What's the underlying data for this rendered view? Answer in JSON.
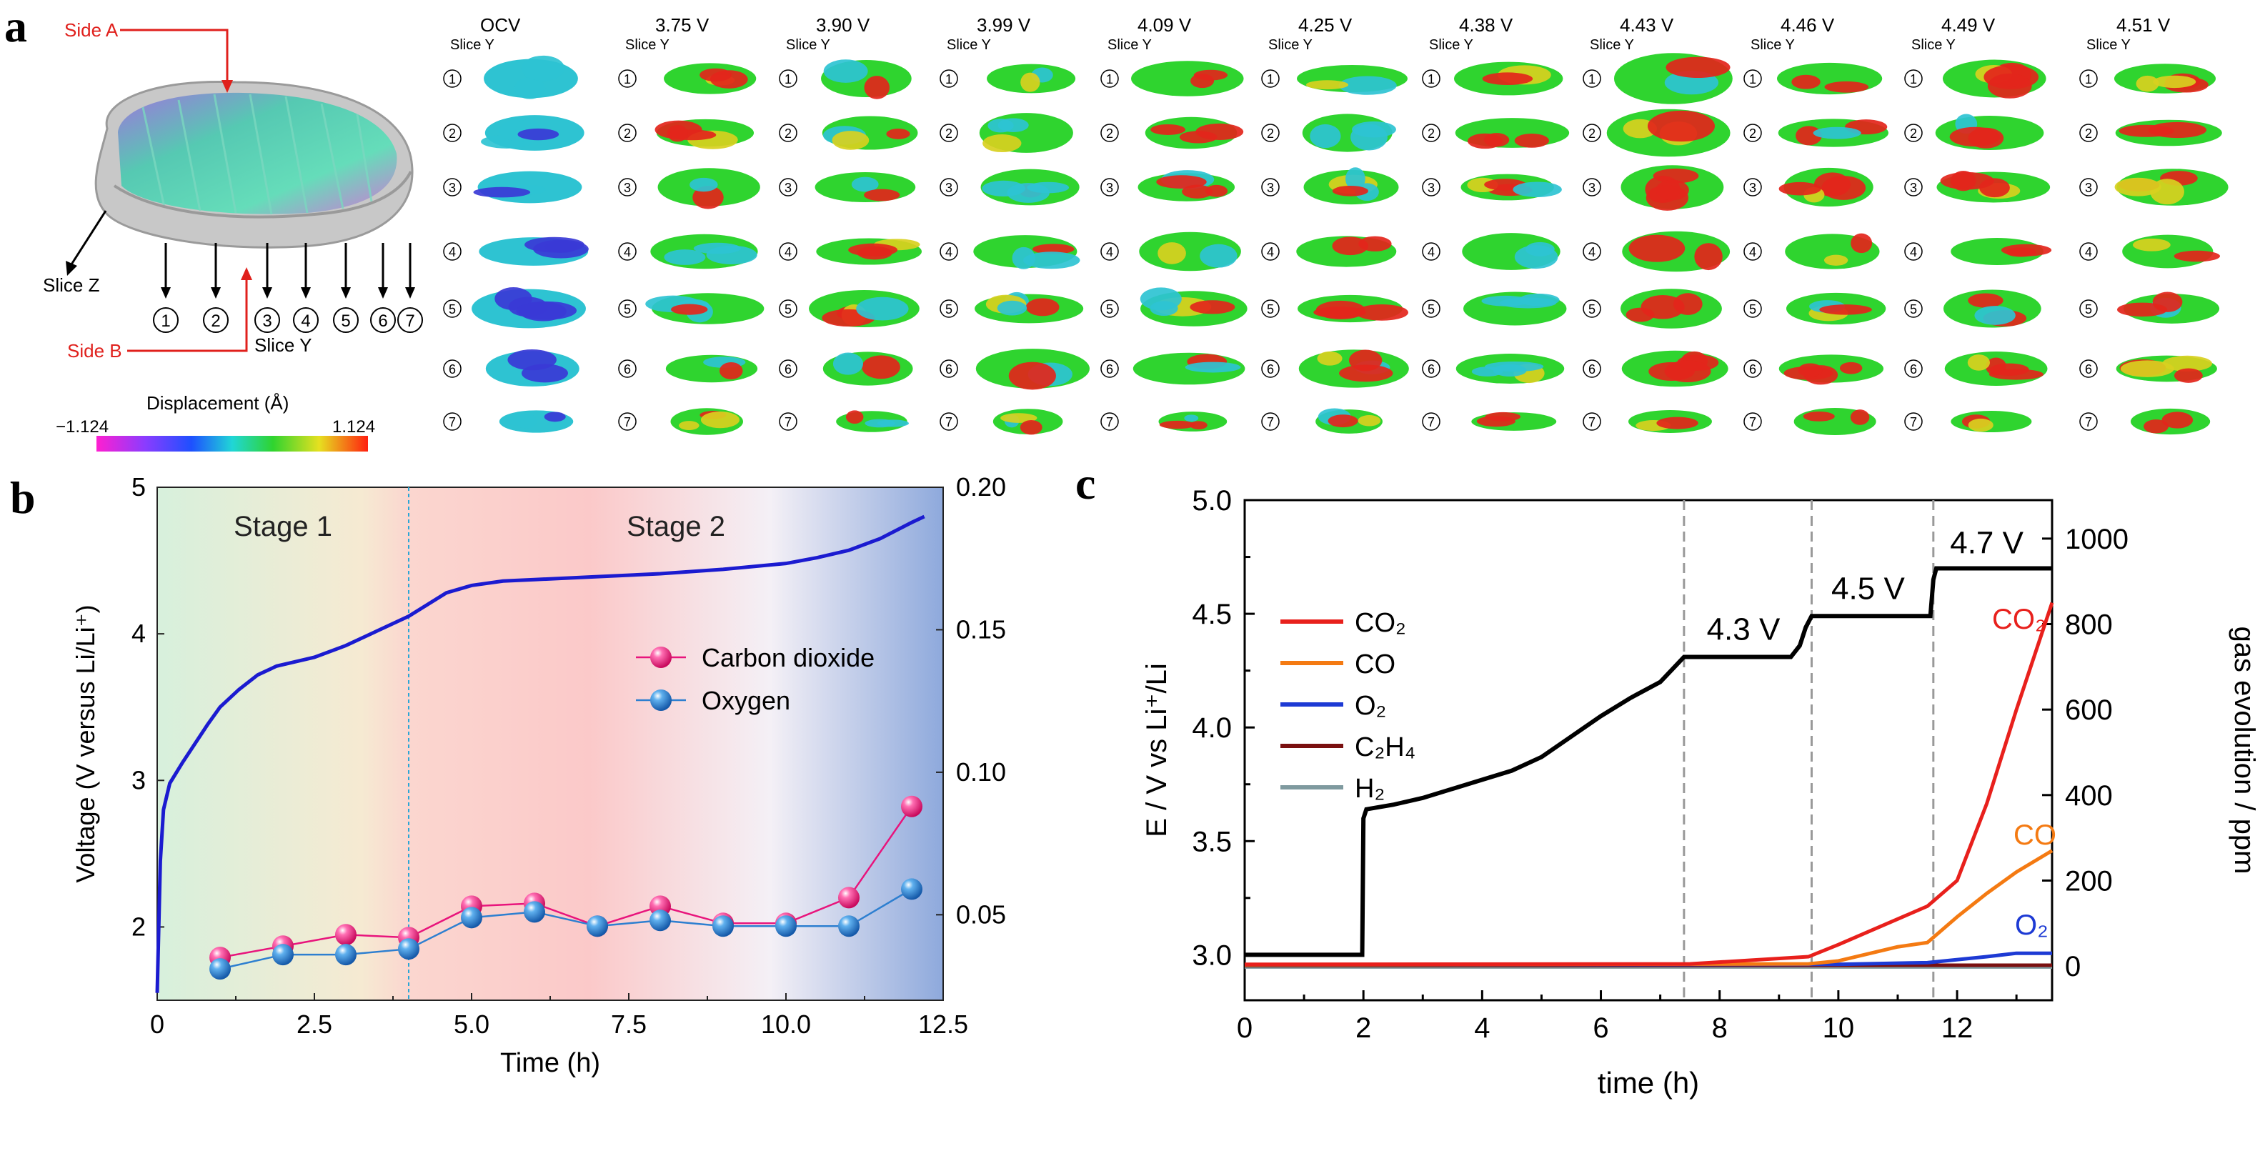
{
  "panel_labels": {
    "a": "a",
    "b": "b",
    "c": "c"
  },
  "panel_a": {
    "side_a_label": "Side A",
    "side_b_label": "Side B",
    "slice_z_label": "Slice Z",
    "slice_y_label": "Slice Y",
    "slice_numbers": [
      "①",
      "②",
      "③",
      "④",
      "⑤",
      "⑥",
      "⑦"
    ],
    "colorbar": {
      "title": "Displacement (Å)",
      "min_label": "−1.124",
      "max_label": "1.124",
      "min": -1.124,
      "max": 1.124
    },
    "columns": [
      {
        "voltage": "OCV",
        "slice_label": "Slice Y"
      },
      {
        "voltage": "3.75 V",
        "slice_label": "Slice Y"
      },
      {
        "voltage": "3.90 V",
        "slice_label": "Slice Y"
      },
      {
        "voltage": "3.99 V",
        "slice_label": "Slice Y"
      },
      {
        "voltage": "4.09 V",
        "slice_label": "Slice Y"
      },
      {
        "voltage": "4.25 V",
        "slice_label": "Slice Y"
      },
      {
        "voltage": "4.38 V",
        "slice_label": "Slice Y"
      },
      {
        "voltage": "4.43 V",
        "slice_label": "Slice Y"
      },
      {
        "voltage": "4.46 V",
        "slice_label": "Slice Y"
      },
      {
        "voltage": "4.49 V",
        "slice_label": "Slice Y"
      },
      {
        "voltage": "4.51 V",
        "slice_label": "Slice Y"
      }
    ],
    "colors": {
      "blue": "#3a3ad6",
      "cyan": "#2ec3d2",
      "green": "#2fd42f",
      "yellow": "#d8d020",
      "red": "#e3251b"
    }
  },
  "chart_data": [
    {
      "id": "b",
      "type": "line",
      "xlabel": "Time (h)",
      "ylabel": "Voltage (V versus Li/Li⁺)",
      "xlim": [
        0,
        12.5
      ],
      "ylim": [
        1.5,
        5
      ],
      "y2lim": [
        0.02,
        0.2
      ],
      "xticks": [
        "0",
        "2.5",
        "5.0",
        "7.5",
        "10.0",
        "12.5"
      ],
      "yticks": [
        "2",
        "3",
        "4",
        "5"
      ],
      "y2ticks": [
        "0.05",
        "0.10",
        "0.15",
        "0.20"
      ],
      "stages": [
        {
          "label": "Stage 1",
          "x": [
            0,
            4
          ]
        },
        {
          "label": "Stage 2",
          "x": [
            4,
            12.5
          ]
        }
      ],
      "divider_x": 4,
      "voltage_curve": {
        "x": [
          0,
          0.05,
          0.1,
          0.2,
          0.4,
          0.6,
          0.8,
          1.0,
          1.3,
          1.6,
          1.9,
          2.1,
          2.5,
          3.0,
          3.5,
          4.0,
          4.3,
          4.6,
          5.0,
          5.5,
          6.0,
          7.0,
          8.0,
          9.0,
          10.0,
          10.5,
          11.0,
          11.5,
          12.0,
          12.2
        ],
        "y": [
          1.55,
          2.45,
          2.8,
          2.98,
          3.12,
          3.25,
          3.38,
          3.5,
          3.62,
          3.72,
          3.78,
          3.8,
          3.84,
          3.92,
          4.02,
          4.12,
          4.2,
          4.28,
          4.33,
          4.36,
          4.37,
          4.39,
          4.41,
          4.44,
          4.48,
          4.52,
          4.57,
          4.65,
          4.76,
          4.8
        ],
        "color": "#1b1bd0"
      },
      "series": [
        {
          "name": "Carbon dioxide",
          "color": "#e8147c",
          "x": [
            1,
            2,
            3,
            4,
            5,
            6,
            7,
            8,
            9,
            10,
            11,
            12
          ],
          "y": [
            0.035,
            0.039,
            0.043,
            0.042,
            0.053,
            0.054,
            0.046,
            0.053,
            0.047,
            0.047,
            0.056,
            0.088
          ]
        },
        {
          "name": "Oxygen",
          "color": "#2d7fd0",
          "x": [
            1,
            2,
            3,
            4,
            5,
            6,
            7,
            8,
            9,
            10,
            11,
            12
          ],
          "y": [
            0.031,
            0.036,
            0.036,
            0.038,
            0.049,
            0.051,
            0.046,
            0.048,
            0.046,
            0.046,
            0.046,
            0.059
          ]
        }
      ],
      "legend_placement": "center-right"
    },
    {
      "id": "c",
      "type": "line",
      "xlabel": "time (h)",
      "ylabel": "E / V vs Li⁺/Li",
      "y2label": "gas evolution / ppm",
      "xlim": [
        0,
        13.6
      ],
      "ylim": [
        2.8,
        5.0
      ],
      "y2lim": [
        -80,
        1090
      ],
      "xticks": [
        "0",
        "2",
        "4",
        "6",
        "8",
        "10",
        "12"
      ],
      "yticks": [
        "3.0",
        "3.5",
        "4.0",
        "4.5",
        "5.0"
      ],
      "y2ticks": [
        "0",
        "200",
        "400",
        "600",
        "800",
        "1000"
      ],
      "dashed_lines_x": [
        7.4,
        9.55,
        11.6
      ],
      "annotations": [
        {
          "text": "4.3 V",
          "x": 8.4,
          "y": 4.36
        },
        {
          "text": "4.5 V",
          "x": 10.5,
          "y": 4.54
        },
        {
          "text": "4.7 V",
          "x": 12.5,
          "y": 4.74
        }
      ],
      "voltage_curve": {
        "x": [
          0,
          1.98,
          2.0,
          2.05,
          2.5,
          3.0,
          3.5,
          4.0,
          4.5,
          5.0,
          5.5,
          6.0,
          6.5,
          7.0,
          7.4,
          9.2,
          9.35,
          9.45,
          9.55,
          11.55,
          11.6,
          11.65,
          13.6
        ],
        "y": [
          3.0,
          3.0,
          3.6,
          3.64,
          3.66,
          3.69,
          3.73,
          3.77,
          3.81,
          3.87,
          3.96,
          4.05,
          4.13,
          4.2,
          4.31,
          4.31,
          4.36,
          4.44,
          4.49,
          4.49,
          4.65,
          4.7,
          4.7
        ],
        "color": "#000000"
      },
      "series": [
        {
          "name": "CO₂",
          "color": "#e8201c",
          "x": [
            0,
            7.5,
            9.5,
            10,
            11,
            11.5,
            12,
            12.5,
            13,
            13.6
          ],
          "y": [
            4,
            5,
            22,
            50,
            110,
            140,
            200,
            380,
            600,
            850
          ]
        },
        {
          "name": "CO",
          "color": "#f47a12",
          "x": [
            0,
            9.5,
            10,
            11,
            11.5,
            12,
            12.5,
            13,
            13.6
          ],
          "y": [
            3,
            5,
            12,
            45,
            55,
            115,
            170,
            220,
            270
          ]
        },
        {
          "name": "O₂",
          "color": "#1d3ad4",
          "x": [
            0,
            10,
            11.5,
            12.5,
            13,
            13.6
          ],
          "y": [
            3,
            4,
            8,
            22,
            30,
            30
          ]
        },
        {
          "name": "C₂H₄",
          "color": "#7a1010",
          "x": [
            0,
            13.6
          ],
          "y": [
            1,
            2
          ]
        },
        {
          "name": "H₂",
          "color": "#7f9a9f",
          "x": [
            0,
            13.6
          ],
          "y": [
            -2,
            -2
          ]
        }
      ],
      "end_labels": [
        {
          "text": "CO₂",
          "color": "#e8201c"
        },
        {
          "text": "CO",
          "color": "#f47a12"
        },
        {
          "text": "O₂",
          "color": "#1d3ad4"
        }
      ],
      "legend_placement": "top-left"
    }
  ]
}
